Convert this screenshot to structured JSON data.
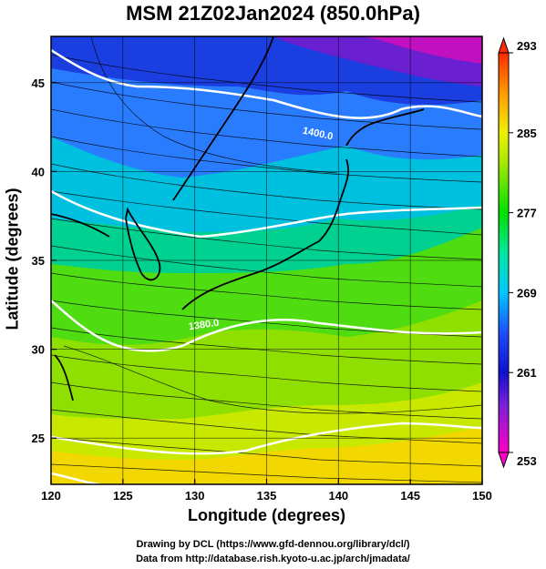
{
  "title": "MSM 21Z02Jan2024 (850.0hPa)",
  "xlabel": "Longitude (degrees)",
  "ylabel": "Latitude  (degrees)",
  "footer": {
    "line1": "Drawing by DCL (https://www.gfd-dennou.org/library/dcl/)",
    "line2": "Data from http://database.rish.kyoto-u.ac.jp/arch/jmadata/"
  },
  "map": {
    "lon_range": [
      120,
      150
    ],
    "lat_range": [
      22.4,
      47.6
    ],
    "lon_ticks": [
      120,
      125,
      130,
      135,
      140,
      145,
      150
    ],
    "lat_ticks": [
      25,
      30,
      35,
      40,
      45
    ],
    "contour_labels": [
      "1400.0",
      "1380.0"
    ],
    "colorbar": {
      "ticks": [
        253,
        261,
        269,
        277,
        285,
        293
      ],
      "range": [
        253,
        293
      ]
    },
    "colors": {
      "coast": "#000000",
      "contour": "#ffffff",
      "streamline": "#000000"
    }
  }
}
